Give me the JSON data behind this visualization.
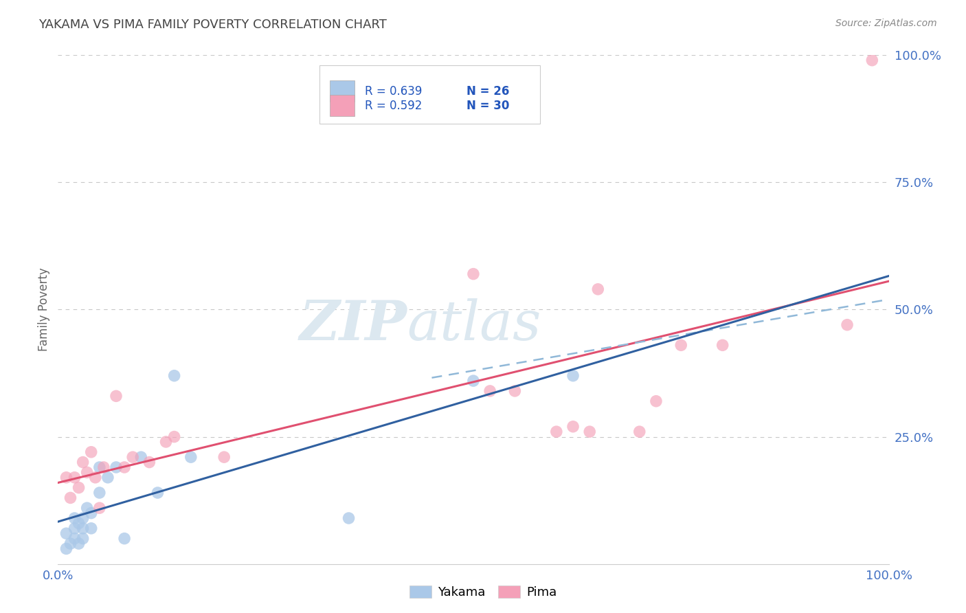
{
  "title": "YAKAMA VS PIMA FAMILY POVERTY CORRELATION CHART",
  "source": "Source: ZipAtlas.com",
  "ylabel": "Family Poverty",
  "xlim": [
    0,
    1.0
  ],
  "ylim": [
    0,
    1.0
  ],
  "yticks": [
    0.0,
    0.25,
    0.5,
    0.75,
    1.0
  ],
  "ytick_labels": [
    "",
    "25.0%",
    "50.0%",
    "75.0%",
    "100.0%"
  ],
  "xticks": [
    0.0,
    0.25,
    0.5,
    0.75,
    1.0
  ],
  "xtick_labels": [
    "0.0%",
    "",
    "",
    "",
    "100.0%"
  ],
  "legend_r_yakama": "R = 0.639",
  "legend_n_yakama": "N = 26",
  "legend_r_pima": "R = 0.592",
  "legend_n_pima": "N = 30",
  "yakama_color": "#aac8e8",
  "pima_color": "#f4a0b8",
  "yakama_line_color": "#3060a0",
  "pima_line_color": "#e05070",
  "dashed_line_color": "#90b8d8",
  "background_color": "#ffffff",
  "grid_color": "#c8c8c8",
  "legend_text_color": "#2255bb",
  "tick_color": "#4472C4",
  "yakama_x": [
    0.01,
    0.01,
    0.015,
    0.02,
    0.02,
    0.02,
    0.025,
    0.025,
    0.03,
    0.03,
    0.03,
    0.035,
    0.04,
    0.04,
    0.05,
    0.05,
    0.06,
    0.07,
    0.08,
    0.1,
    0.12,
    0.14,
    0.16,
    0.35,
    0.5,
    0.62
  ],
  "yakama_y": [
    0.03,
    0.06,
    0.04,
    0.05,
    0.07,
    0.09,
    0.04,
    0.08,
    0.05,
    0.07,
    0.09,
    0.11,
    0.07,
    0.1,
    0.14,
    0.19,
    0.17,
    0.19,
    0.05,
    0.21,
    0.14,
    0.37,
    0.21,
    0.09,
    0.36,
    0.37
  ],
  "pima_x": [
    0.01,
    0.015,
    0.02,
    0.025,
    0.03,
    0.035,
    0.04,
    0.045,
    0.05,
    0.055,
    0.07,
    0.08,
    0.09,
    0.11,
    0.13,
    0.14,
    0.2,
    0.5,
    0.52,
    0.55,
    0.6,
    0.62,
    0.64,
    0.65,
    0.7,
    0.72,
    0.75,
    0.8,
    0.95,
    0.98
  ],
  "pima_y": [
    0.17,
    0.13,
    0.17,
    0.15,
    0.2,
    0.18,
    0.22,
    0.17,
    0.11,
    0.19,
    0.33,
    0.19,
    0.21,
    0.2,
    0.24,
    0.25,
    0.21,
    0.57,
    0.34,
    0.34,
    0.26,
    0.27,
    0.26,
    0.54,
    0.26,
    0.32,
    0.43,
    0.43,
    0.47,
    0.99
  ],
  "watermark_zip": "ZIP",
  "watermark_atlas": "atlas",
  "bottom_legend_labels": [
    "Yakama",
    "Pima"
  ]
}
